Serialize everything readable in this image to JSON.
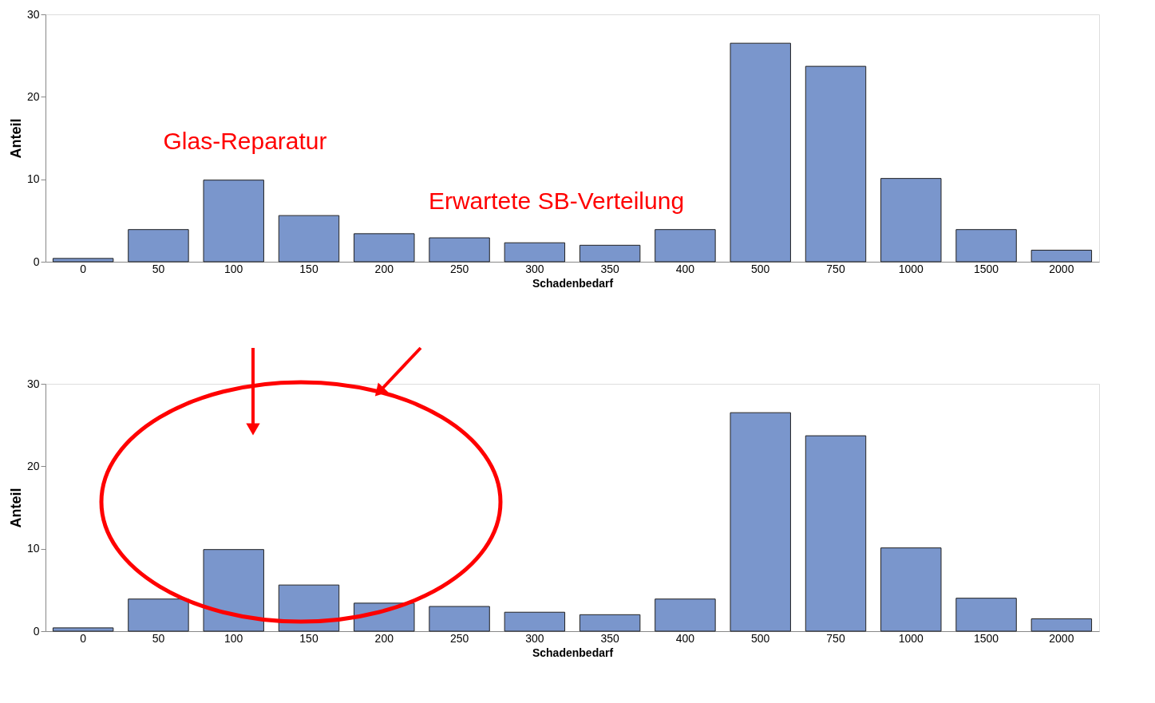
{
  "chart_data": [
    {
      "type": "bar",
      "categories": [
        "0",
        "50",
        "100",
        "150",
        "200",
        "250",
        "300",
        "350",
        "400",
        "500",
        "750",
        "1000",
        "1500",
        "2000"
      ],
      "values": [
        0.4,
        3.9,
        9.9,
        5.6,
        3.4,
        2.9,
        2.3,
        2.0,
        3.9,
        26.5,
        23.7,
        10.1,
        3.9,
        1.4
      ],
      "color": "#7a96cc",
      "ylim": [
        0,
        30
      ],
      "yticks": [
        0,
        10,
        20,
        30
      ],
      "xlabel": "Schadenbedarf",
      "ylabel": "Anteil",
      "annotations": [
        "Glas-Reparatur",
        "Erwartete SB-Verteilung"
      ]
    },
    {
      "type": "bar",
      "categories": [
        "0",
        "50",
        "100",
        "150",
        "200",
        "250",
        "300",
        "350",
        "400",
        "500",
        "750",
        "1000",
        "1500",
        "2000"
      ],
      "values": [
        0.4,
        3.9,
        9.9,
        5.6,
        3.4,
        3.0,
        2.3,
        2.0,
        3.9,
        26.5,
        23.7,
        10.1,
        4.0,
        1.5
      ],
      "color": "#7a96cc",
      "ylim": [
        0,
        30
      ],
      "yticks": [
        0,
        10,
        20,
        30
      ],
      "xlabel": "Schadenbedarf",
      "ylabel": "Anteil"
    }
  ]
}
